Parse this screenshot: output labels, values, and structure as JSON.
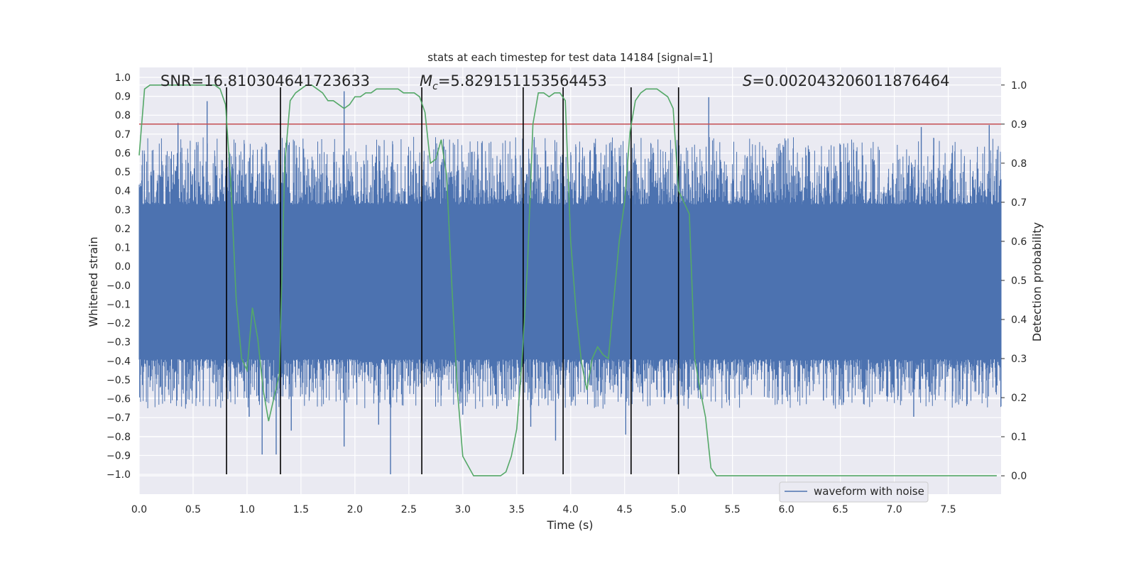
{
  "chart_data": {
    "type": "line",
    "title": "stats at each timestep for test data 14184 [signal=1]",
    "xlabel": "Time (s)",
    "ylabel": "Whitened strain",
    "y2label": "Detection probability",
    "xlim": [
      0.0,
      7.99
    ],
    "ylim": [
      -1.1,
      1.05
    ],
    "y2lim": [
      -0.047,
      1.045
    ],
    "xticks": [
      "0.0",
      "0.5",
      "1.0",
      "1.5",
      "2.0",
      "2.5",
      "3.0",
      "3.5",
      "4.0",
      "4.5",
      "5.0",
      "5.5",
      "6.0",
      "6.5",
      "7.0",
      "7.5"
    ],
    "yticks": [
      "1.0",
      "0.9",
      "0.8",
      "0.7",
      "0.6",
      "0.5",
      "0.4",
      "0.3",
      "0.2",
      "0.1",
      "0.0",
      "-0.0",
      "-0.1",
      "-0.2",
      "-0.3",
      "-0.4",
      "-0.5",
      "-0.6",
      "-0.7",
      "-0.8",
      "-0.9",
      "-1.0"
    ],
    "y2ticks": [
      "0.0",
      "0.1",
      "0.2",
      "0.3",
      "0.4",
      "0.5",
      "0.6",
      "0.7",
      "0.8",
      "0.9",
      "1.0"
    ],
    "annotations": {
      "snr": "SNR=16.810304641723633",
      "mc_symbol": "M",
      "mc_sub": "c",
      "mc_value": "=5.829151153564453",
      "s_symbol": "S",
      "s_value": "=0.002043206011876464"
    },
    "threshold": {
      "value": 0.9,
      "color": "#c44e52"
    },
    "vlines": [
      0.81,
      1.31,
      2.62,
      3.56,
      3.93,
      4.56,
      5.0
    ],
    "legend": {
      "label": "waveform with noise",
      "position": "lower-right"
    },
    "series": [
      {
        "name": "waveform with noise",
        "axis": "left",
        "color": "#4c72b0",
        "envelope": {
          "core": [
            -0.42,
            0.36
          ],
          "typical_peak": [
            -0.55,
            0.55
          ]
        },
        "spikes": [
          {
            "x": 0.63,
            "y": 0.88
          },
          {
            "x": 0.36,
            "y": 0.77
          },
          {
            "x": 1.02,
            "y": -0.71
          },
          {
            "x": 1.14,
            "y": -0.9
          },
          {
            "x": 1.27,
            "y": -0.9
          },
          {
            "x": 1.9,
            "y": 0.93
          },
          {
            "x": 1.9,
            "y": -0.86
          },
          {
            "x": 2.33,
            "y": -1.0
          },
          {
            "x": 2.22,
            "y": -0.75
          },
          {
            "x": 3.63,
            "y": -0.76
          },
          {
            "x": 3.86,
            "y": -0.83
          },
          {
            "x": 4.51,
            "y": -0.8
          },
          {
            "x": 5.28,
            "y": 0.9
          },
          {
            "x": 7.25,
            "y": 0.75
          },
          {
            "x": 7.88,
            "y": 0.76
          },
          {
            "x": 7.18,
            "y": -0.71
          },
          {
            "x": 1.41,
            "y": -0.78
          },
          {
            "x": 3.0,
            "y": -0.7
          }
        ]
      },
      {
        "name": "detection probability",
        "axis": "right",
        "color": "#55a868",
        "x": [
          0.0,
          0.05,
          0.1,
          0.2,
          0.3,
          0.4,
          0.5,
          0.6,
          0.65,
          0.7,
          0.75,
          0.8,
          0.85,
          0.9,
          0.95,
          1.0,
          1.05,
          1.1,
          1.15,
          1.2,
          1.25,
          1.3,
          1.35,
          1.4,
          1.45,
          1.5,
          1.55,
          1.6,
          1.65,
          1.7,
          1.75,
          1.8,
          1.85,
          1.9,
          1.95,
          2.0,
          2.05,
          2.1,
          2.15,
          2.2,
          2.25,
          2.3,
          2.35,
          2.4,
          2.45,
          2.5,
          2.55,
          2.6,
          2.65,
          2.7,
          2.75,
          2.8,
          2.85,
          2.9,
          2.95,
          3.0,
          3.1,
          3.2,
          3.3,
          3.35,
          3.4,
          3.45,
          3.5,
          3.55,
          3.6,
          3.65,
          3.7,
          3.75,
          3.8,
          3.85,
          3.9,
          3.95,
          4.0,
          4.05,
          4.1,
          4.15,
          4.2,
          4.25,
          4.3,
          4.35,
          4.4,
          4.45,
          4.5,
          4.55,
          4.6,
          4.65,
          4.7,
          4.75,
          4.8,
          4.85,
          4.9,
          4.95,
          5.0,
          5.05,
          5.1,
          5.15,
          5.2,
          5.25,
          5.3,
          5.35,
          5.45,
          5.6,
          5.75,
          5.9,
          6.1,
          6.5,
          7.0,
          7.3,
          7.6,
          7.95
        ],
        "y": [
          0.82,
          0.99,
          1.0,
          1.0,
          1.0,
          1.0,
          1.0,
          1.0,
          1.0,
          1.0,
          0.99,
          0.95,
          0.75,
          0.45,
          0.3,
          0.27,
          0.43,
          0.35,
          0.22,
          0.14,
          0.2,
          0.26,
          0.8,
          0.96,
          0.98,
          0.99,
          1.0,
          1.0,
          0.99,
          0.98,
          0.96,
          0.96,
          0.95,
          0.94,
          0.95,
          0.97,
          0.97,
          0.98,
          0.98,
          0.99,
          0.99,
          0.99,
          0.99,
          0.99,
          0.98,
          0.98,
          0.98,
          0.97,
          0.93,
          0.8,
          0.81,
          0.86,
          0.77,
          0.48,
          0.22,
          0.05,
          0.0,
          0.0,
          0.0,
          0.0,
          0.01,
          0.05,
          0.12,
          0.3,
          0.54,
          0.9,
          0.98,
          0.98,
          0.97,
          0.98,
          0.98,
          0.96,
          0.6,
          0.42,
          0.29,
          0.22,
          0.3,
          0.33,
          0.31,
          0.3,
          0.45,
          0.6,
          0.7,
          0.88,
          0.96,
          0.98,
          0.99,
          0.99,
          0.99,
          0.98,
          0.97,
          0.94,
          0.73,
          0.7,
          0.67,
          0.3,
          0.22,
          0.15,
          0.02,
          0.0,
          0.0,
          0.0,
          0.0,
          0.0,
          0.0,
          0.0,
          0.0,
          0.0,
          0.0,
          0.0
        ]
      }
    ]
  }
}
